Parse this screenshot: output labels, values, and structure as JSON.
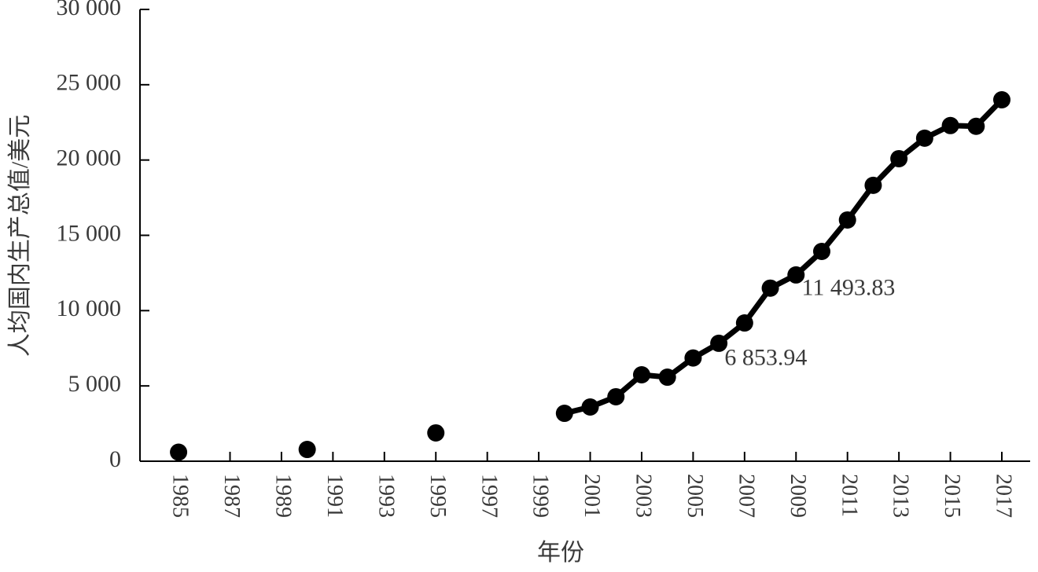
{
  "chart_data": {
    "type": "line",
    "x_label": "年份",
    "y_label": "人均国内生产总值/美元",
    "x": [
      1985,
      1986,
      1987,
      1988,
      1989,
      1990,
      1991,
      1992,
      1993,
      1994,
      1995,
      1996,
      1997,
      1998,
      1999,
      2000,
      2001,
      2002,
      2003,
      2004,
      2005,
      2006,
      2007,
      2008,
      2009,
      2010,
      2011,
      2012,
      2013,
      2014,
      2015,
      2016,
      2017
    ],
    "series": [
      {
        "color": "#000000",
        "values": [
          600,
          null,
          null,
          null,
          null,
          780,
          null,
          null,
          null,
          null,
          1880,
          null,
          null,
          null,
          null,
          3180,
          3600,
          4280,
          5740,
          5580,
          6853.94,
          7830,
          9180,
          11493.83,
          12370,
          13930,
          16020,
          18320,
          20090,
          21450,
          22290,
          22240,
          24000
        ],
        "value_labels": [
          null,
          null,
          null,
          null,
          null,
          null,
          null,
          null,
          null,
          null,
          null,
          null,
          null,
          null,
          null,
          null,
          null,
          null,
          null,
          null,
          "6 853.94",
          null,
          null,
          "11 493.83",
          null,
          null,
          null,
          null,
          null,
          null,
          null,
          null,
          null
        ]
      }
    ],
    "xlim": [
      1983.5,
      2018.1
    ],
    "xticks": [
      1985,
      1987,
      1989,
      1991,
      1993,
      1995,
      1997,
      1999,
      2001,
      2003,
      2005,
      2007,
      2009,
      2011,
      2013,
      2015,
      2017
    ],
    "ylim": [
      0,
      30000
    ],
    "yticks": [
      0,
      {
        "value": 5000,
        "label": "5 000"
      },
      {
        "value": 10000,
        "label": "10 000"
      },
      {
        "value": 15000,
        "label": "15 000"
      },
      {
        "value": 20000,
        "label": "20 000"
      },
      {
        "value": 25000,
        "label": "25 000"
      },
      {
        "value": 30000,
        "label": "30 000"
      }
    ],
    "grid": false
  }
}
